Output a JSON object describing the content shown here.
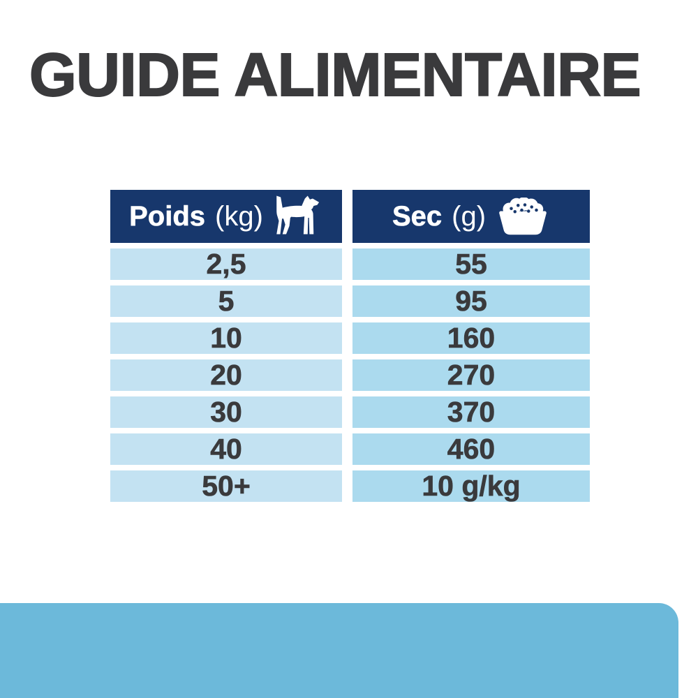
{
  "title": "GUIDE ALIMENTAIRE",
  "chart_data": {
    "type": "table",
    "columns": [
      {
        "label": "Poids",
        "unit": "(kg)",
        "icon": "dog-icon"
      },
      {
        "label": "Sec",
        "unit": "(g)",
        "icon": "food-bowl-icon"
      }
    ],
    "rows": [
      [
        "2,5",
        "55"
      ],
      [
        "5",
        "95"
      ],
      [
        "10",
        "160"
      ],
      [
        "20",
        "270"
      ],
      [
        "30",
        "370"
      ],
      [
        "40",
        "460"
      ],
      [
        "50+",
        "10 g/kg"
      ]
    ]
  },
  "colors": {
    "header_navy": "#17376c",
    "row_left_blue": "#c3e2f2",
    "row_right_blue": "#abdaee",
    "bottom_band_blue": "#6cb9da",
    "text_charcoal": "#3a3a3c"
  }
}
